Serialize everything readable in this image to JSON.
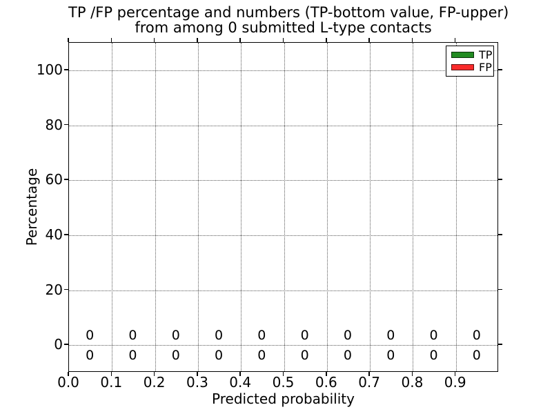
{
  "figure_title": {
    "line1": "TP /FP percentage and numbers (TP-bottom value, FP-upper)",
    "line2": "from among 0 submitted L-type contacts"
  },
  "chart_data": {
    "type": "bar",
    "title": "TP /FP percentage and numbers (TP-bottom value, FP-upper)\nfrom among 0 submitted L-type contacts",
    "xlabel": "Predicted probability",
    "ylabel": "Percentage",
    "xlim": [
      0.0,
      1.0
    ],
    "ylim": [
      -10,
      110
    ],
    "grid": true,
    "x_ticks": [
      {
        "value": 0.0,
        "label": "0.0"
      },
      {
        "value": 0.1,
        "label": "0.1"
      },
      {
        "value": 0.2,
        "label": "0.2"
      },
      {
        "value": 0.3,
        "label": "0.3"
      },
      {
        "value": 0.4,
        "label": "0.4"
      },
      {
        "value": 0.5,
        "label": "0.5"
      },
      {
        "value": 0.6,
        "label": "0.6"
      },
      {
        "value": 0.7,
        "label": "0.7"
      },
      {
        "value": 0.8,
        "label": "0.8"
      },
      {
        "value": 0.9,
        "label": "0.9"
      }
    ],
    "y_ticks": [
      {
        "value": 0,
        "label": "0"
      },
      {
        "value": 20,
        "label": "20"
      },
      {
        "value": 40,
        "label": "40"
      },
      {
        "value": 60,
        "label": "60"
      },
      {
        "value": 80,
        "label": "80"
      },
      {
        "value": 100,
        "label": "100"
      }
    ],
    "bin_centers": [
      0.05,
      0.15,
      0.25,
      0.35,
      0.45,
      0.55,
      0.65,
      0.75,
      0.85,
      0.95
    ],
    "series": [
      {
        "name": "TP",
        "color": "#228B22",
        "values": [
          0,
          0,
          0,
          0,
          0,
          0,
          0,
          0,
          0,
          0
        ],
        "count_labels": [
          "0",
          "0",
          "0",
          "0",
          "0",
          "0",
          "0",
          "0",
          "0",
          "0"
        ],
        "label_row": "below-zero-line"
      },
      {
        "name": "FP",
        "color": "#F92B2B",
        "values": [
          0,
          0,
          0,
          0,
          0,
          0,
          0,
          0,
          0,
          0
        ],
        "count_labels": [
          "0",
          "0",
          "0",
          "0",
          "0",
          "0",
          "0",
          "0",
          "0",
          "0"
        ],
        "label_row": "above-zero-line"
      }
    ],
    "legend": {
      "position": "upper right",
      "entries": [
        {
          "label": "TP",
          "color": "#228B22"
        },
        {
          "label": "FP",
          "color": "#F92B2B"
        }
      ]
    }
  }
}
